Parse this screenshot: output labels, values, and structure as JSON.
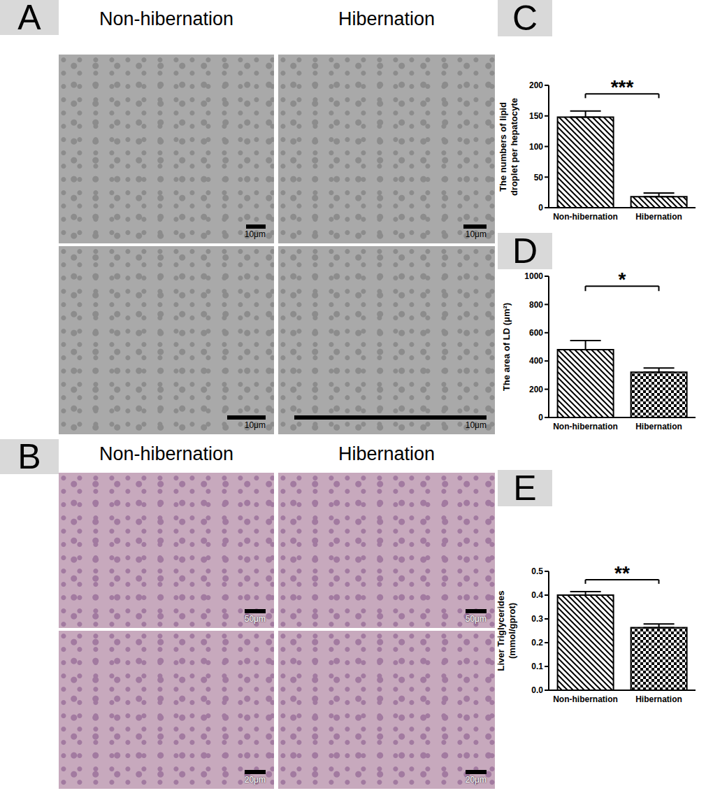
{
  "panels": [
    {
      "label": "A",
      "columns": [
        "Non-hibernation",
        "Hibernation"
      ],
      "scale_bars": [
        [
          "10μm",
          "10μm"
        ],
        [
          "10μm",
          "10μm"
        ]
      ]
    },
    {
      "label": "B",
      "columns": [
        "Non-hibernation",
        "Hibernation"
      ],
      "scale_bars": [
        [
          "50μm",
          "50μm"
        ],
        [
          "20μm",
          "20μm"
        ]
      ]
    }
  ],
  "chart_data": [
    {
      "panel": "C",
      "type": "bar",
      "y_label": "The numbers of lipid droplet per hepatocyte",
      "categories": [
        "Non-hibernation",
        "Hibernation"
      ],
      "values": [
        148,
        18
      ],
      "errors": [
        10,
        6
      ],
      "significance": "***",
      "color": "#000000",
      "ylim": [
        0,
        200
      ],
      "yticks": [
        0,
        50,
        100,
        150,
        200
      ]
    },
    {
      "panel": "D",
      "type": "bar",
      "y_label": "The area of LD (μm²)",
      "categories": [
        "Non-hibernation",
        "Hibernation"
      ],
      "values": [
        480,
        320
      ],
      "errors": [
        65,
        30
      ],
      "significance": "*",
      "color": "#000000",
      "ylim": [
        0,
        1000
      ],
      "yticks": [
        0,
        200,
        400,
        600,
        800,
        1000
      ]
    },
    {
      "panel": "E",
      "type": "bar",
      "y_label": "Liver Triglycerides (mmol/gprot)",
      "categories": [
        "Non-hibernation",
        "Hibernation"
      ],
      "values": [
        0.4,
        0.263
      ],
      "errors": [
        0.015,
        0.016
      ],
      "significance": "**",
      "color": "#000000",
      "ylim": [
        0,
        0.5
      ],
      "yticks": [
        {
          "value": 0,
          "label": "0.0"
        },
        0.1,
        0.2,
        0.3,
        0.4,
        0.5
      ]
    }
  ]
}
